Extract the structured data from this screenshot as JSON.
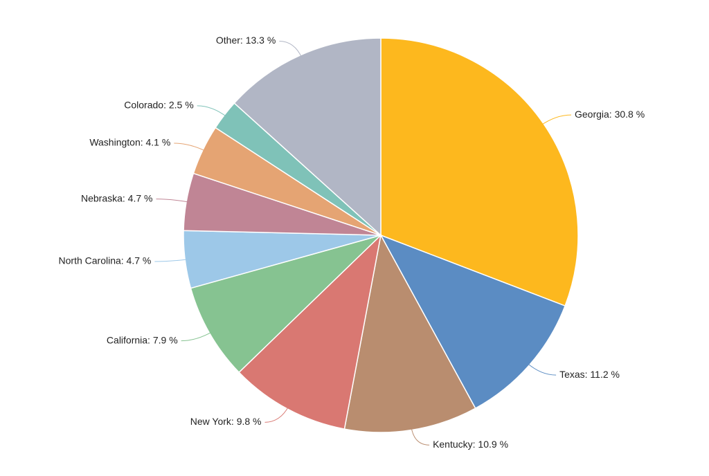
{
  "chart_data": {
    "type": "pie",
    "values": [
      30.8,
      11.2,
      10.9,
      9.8,
      7.9,
      4.7,
      4.7,
      4.1,
      2.5,
      13.3
    ],
    "value_labels": [
      "Georgia: 30.8 %",
      "Texas: 11.2 %",
      "Kentucky: 10.9 %",
      "New York: 9.8 %",
      "California: 7.9 %",
      "North Carolina: 4.7 %",
      "Nebraska: 4.7 %",
      "Washington: 4.1 %",
      "Colorado: 2.5 %",
      "Other: 13.3 %"
    ],
    "colors": [
      "#fdb81e",
      "#5b8cc3",
      "#b98d6f",
      "#d97872",
      "#86c391",
      "#9dc8e8",
      "#c08595",
      "#e5a473",
      "#7fc2b8",
      "#b1b6c5"
    ]
  }
}
